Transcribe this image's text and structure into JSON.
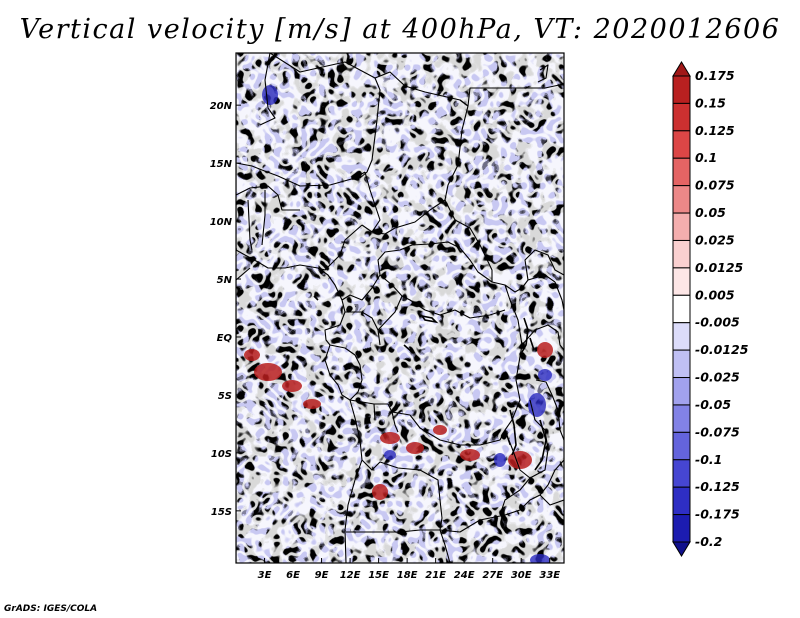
{
  "title": "Vertical velocity [m/s] at 400hPa, VT: 2020012606",
  "credit": "GrADS: IGES/COLA",
  "map": {
    "lat_ticks": [
      "20N",
      "15N",
      "10N",
      "5N",
      "EQ",
      "5S",
      "10S",
      "15S"
    ],
    "lon_ticks": [
      "3E",
      "6E",
      "9E",
      "12E",
      "15E",
      "18E",
      "21E",
      "24E",
      "27E",
      "30E",
      "33E"
    ],
    "lat_range": [
      -19.5,
      24.5
    ],
    "lon_range": [
      0,
      34.5
    ],
    "field": "vertical velocity",
    "units": "m/s",
    "pressure_level": "400hPa",
    "valid_time": "2020012606"
  },
  "colorbar": {
    "labels": [
      "0.175",
      "0.15",
      "0.125",
      "0.1",
      "0.075",
      "0.05",
      "0.025",
      "0.0125",
      "0.005",
      "-0.005",
      "-0.0125",
      "-0.025",
      "-0.05",
      "-0.075",
      "-0.1",
      "-0.125",
      "-0.175",
      "-0.2"
    ],
    "colors": [
      "#a01818",
      "#b82020",
      "#cc3030",
      "#dc4646",
      "#e46464",
      "#ec8888",
      "#f4aeae",
      "#fad0d0",
      "#fde6e6",
      "#ffffff",
      "#dcdcfa",
      "#c0c0f4",
      "#a2a2ee",
      "#8282e6",
      "#6464dc",
      "#4646d2",
      "#2e2ec4",
      "#1c1cb0",
      "#10108c"
    ]
  }
}
